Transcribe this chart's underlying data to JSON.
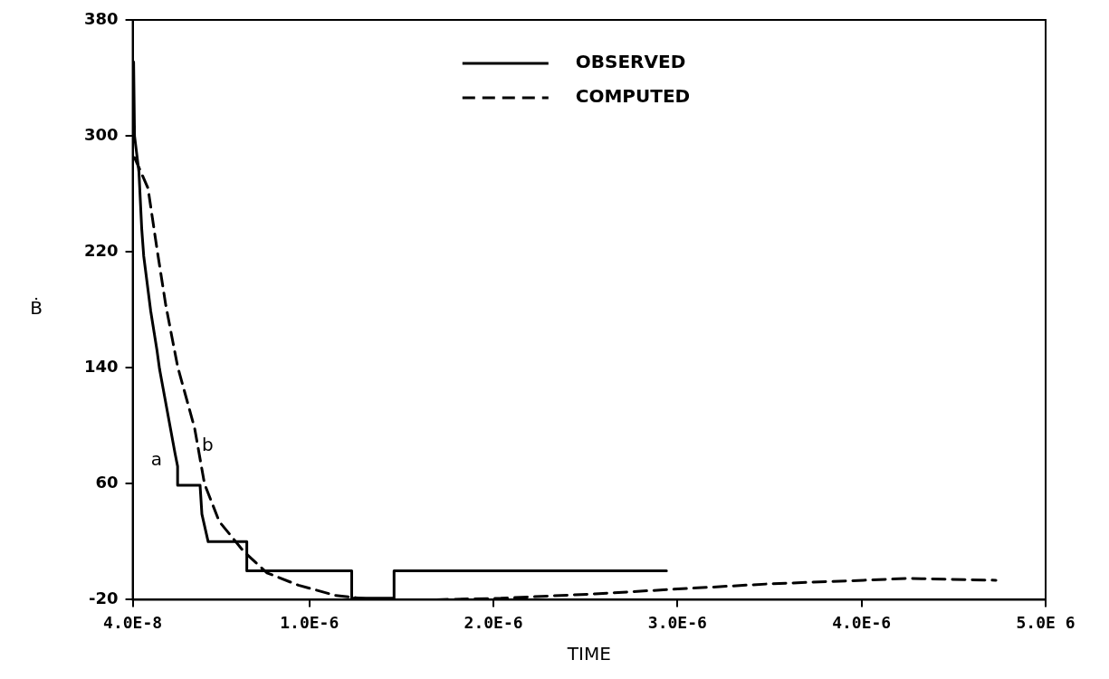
{
  "chart_data": {
    "type": "line",
    "xlabel": "TIME",
    "ylabel": "Ḃ",
    "xlim": [
      4e-08,
      5e-06
    ],
    "ylim": [
      -20,
      380
    ],
    "xticks": [
      {
        "value": 4e-08,
        "label": "4.0E-8"
      },
      {
        "value": 1e-06,
        "label": "1.0E-6"
      },
      {
        "value": 2e-06,
        "label": "2.0E-6"
      },
      {
        "value": 3e-06,
        "label": "3.0E-6"
      },
      {
        "value": 4e-06,
        "label": "4.0E-6"
      },
      {
        "value": 5e-06,
        "label": "5.0E 6"
      }
    ],
    "yticks": [
      -20,
      60,
      140,
      220,
      300,
      380
    ],
    "legend": "top",
    "marker": "none",
    "series": [
      {
        "name": "OBSERVED",
        "color": "#000000",
        "line_style": "solid",
        "x": [
          4.5e-08,
          5e-08,
          7.4e-08,
          8.9e-08,
          1e-07,
          1.38e-07,
          1.72e-07,
          1.86e-07,
          2.7e-07,
          2.84e-07,
          2.84e-07,
          4.06e-07,
          4.16e-07,
          4.5e-07,
          6.6e-07,
          6.6e-07,
          1.23e-06,
          1.23e-06,
          1.46e-06,
          1.46e-06,
          2.94e-06
        ],
        "values": [
          351,
          300,
          275,
          236,
          217,
          179,
          152,
          139,
          81,
          72,
          59,
          59,
          39,
          20,
          20,
          0,
          0,
          -19,
          -19,
          0,
          0
        ]
      },
      {
        "name": "COMPUTED",
        "color": "#000000",
        "line_style": "dashed",
        "x": [
          5e-08,
          1.23e-07,
          1.72e-07,
          2.2e-07,
          2.84e-07,
          3.77e-07,
          4.3e-07,
          5.1e-07,
          6.45e-07,
          7.7e-07,
          9.4e-07,
          1.14e-06,
          1.35e-06,
          1.69e-06,
          2.04e-06,
          2.55e-06,
          2.95e-06,
          3.51e-06,
          4.01e-06,
          4.25e-06,
          4.73e-06
        ],
        "values": [
          285,
          264,
          222,
          183,
          141,
          98,
          60,
          34,
          13,
          -1.5,
          -10,
          -17,
          -20,
          -20,
          -19,
          -16,
          -13,
          -9,
          -6.6,
          -5.3,
          -6.6
        ]
      }
    ],
    "annotations": [
      "a",
      "b"
    ]
  }
}
